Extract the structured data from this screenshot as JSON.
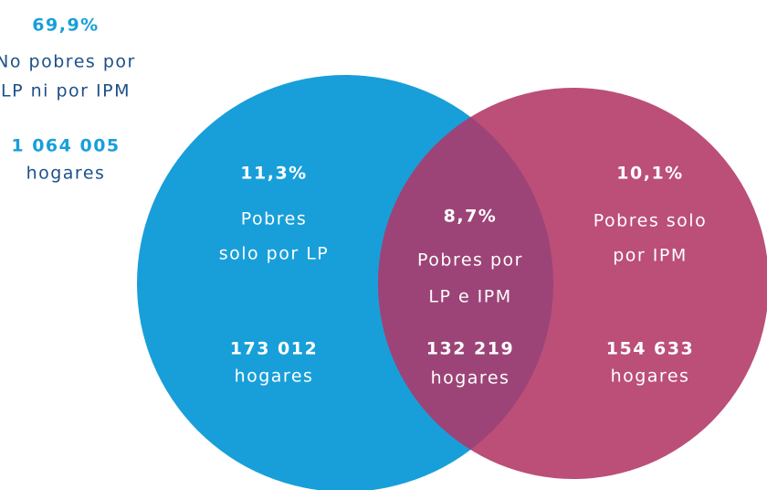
{
  "outside": {
    "percent": "69,9%",
    "label_lines": [
      "No pobres por",
      "LP ni por IPM"
    ],
    "count": "1 064 005",
    "unit": "hogares"
  },
  "regions": [
    {
      "percent": "11,3%",
      "label_lines": [
        "Pobres",
        "solo por LP"
      ],
      "count": "173 012",
      "unit": "hogares"
    },
    {
      "percent": "8,7%",
      "label_lines": [
        "Pobres por",
        "LP e IPM"
      ],
      "count": "132 219",
      "unit": "hogares"
    },
    {
      "percent": "10,1%",
      "label_lines": [
        "Pobres solo",
        "por IPM"
      ],
      "count": "154 633",
      "unit": "hogares"
    }
  ]
}
